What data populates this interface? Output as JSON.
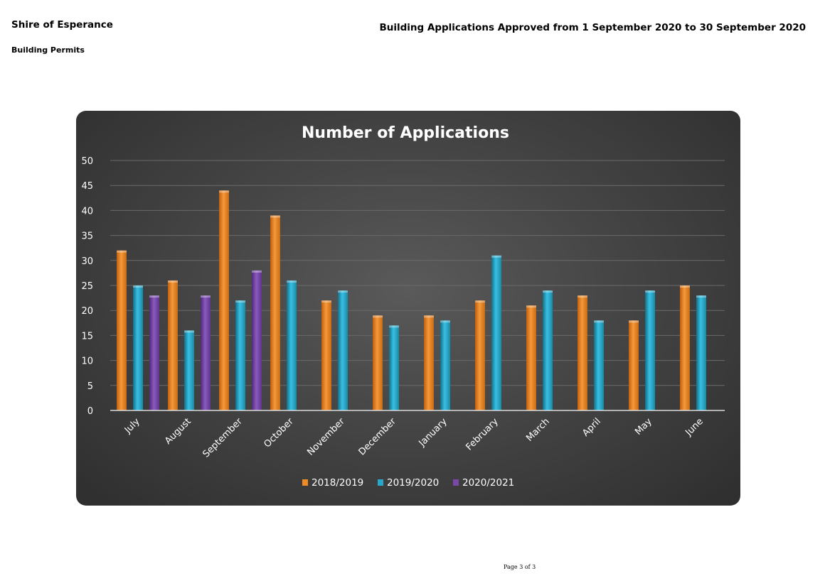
{
  "header": {
    "organisation": "Shire of Esperance",
    "section": "Building Permits",
    "report_title": "Building Applications Approved from 1 September 2020 to 30 September 2020"
  },
  "footer": {
    "page_label": "Page 3 of 3"
  },
  "colors": {
    "series_2018_2019": "#f08a24",
    "series_2019_2020": "#27a7c9",
    "series_2020_2021": "#7a48a8",
    "panel_background": "#3f3f3f",
    "text": "#ffffff"
  },
  "chart_data": {
    "type": "bar",
    "title": "Number of Applications",
    "xlabel": "",
    "ylabel": "",
    "ylim": [
      0,
      50
    ],
    "yticks": [
      0,
      5,
      10,
      15,
      20,
      25,
      30,
      35,
      40,
      45,
      50
    ],
    "categories": [
      "July",
      "August",
      "September",
      "October",
      "November",
      "December",
      "January",
      "February",
      "March",
      "April",
      "May",
      "June"
    ],
    "series": [
      {
        "name": "2018/2019",
        "values": [
          32,
          26,
          44,
          39,
          22,
          19,
          19,
          22,
          21,
          23,
          18,
          25
        ]
      },
      {
        "name": "2019/2020",
        "values": [
          25,
          16,
          22,
          26,
          24,
          17,
          18,
          31,
          24,
          18,
          24,
          23
        ]
      },
      {
        "name": "2020/2021",
        "values": [
          23,
          23,
          28,
          null,
          null,
          null,
          null,
          null,
          null,
          null,
          null,
          null
        ]
      }
    ],
    "grid": true,
    "legend_position": "bottom"
  }
}
